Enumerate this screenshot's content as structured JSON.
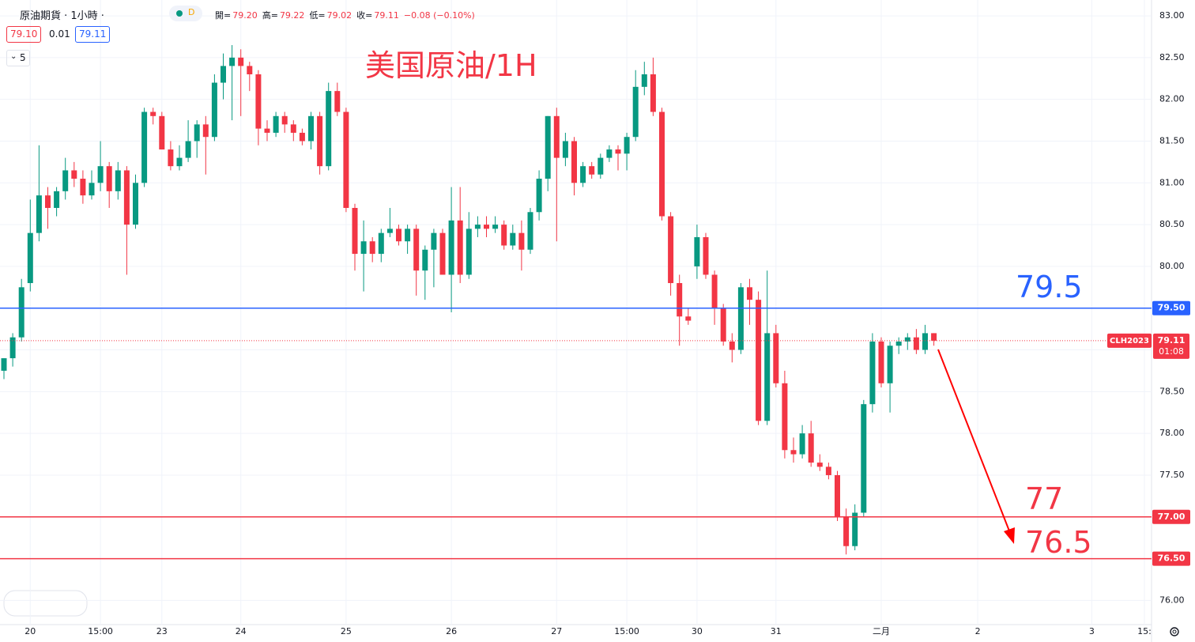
{
  "chart_data": {
    "type": "candlestick",
    "header": {
      "symbol": "原油期貨 · 1小時 ·",
      "badge": "D",
      "items": [
        {
          "label": "開=",
          "value": "79.20"
        },
        {
          "label": "高=",
          "value": "79.22"
        },
        {
          "label": "低=",
          "value": "79.02"
        },
        {
          "label": "收=",
          "value": "79.11"
        }
      ],
      "change": "−0.08 (−0.10%)",
      "bid": "79.10",
      "spread": "0.01",
      "ask": "79.11",
      "indicator": "5"
    },
    "title": "美国原油/1H",
    "annotations": [
      "79.5",
      "77",
      "76.5"
    ],
    "up_color": "#089981",
    "down_color": "#f23645",
    "categories": [
      null,
      null,
      null,
      "20",
      null,
      null,
      null,
      null,
      null,
      null,
      null,
      "15:00",
      null,
      null,
      null,
      null,
      null,
      null,
      "23",
      null,
      null,
      null,
      null,
      null,
      null,
      null,
      null,
      "24",
      null,
      null,
      null,
      null,
      null,
      null,
      null,
      null,
      null,
      null,
      null,
      "25",
      null,
      null,
      null,
      null,
      null,
      null,
      null,
      null,
      null,
      null,
      null,
      "26",
      null,
      null,
      null,
      null,
      null,
      null,
      null,
      null,
      null,
      null,
      null,
      "27",
      null,
      null,
      null,
      null,
      null,
      null,
      null,
      "15:00",
      null,
      null,
      null,
      null,
      null,
      null,
      null,
      "30",
      null,
      null,
      null,
      null,
      null,
      null,
      null,
      null,
      "31",
      null,
      null,
      null,
      null,
      null,
      null,
      null,
      null,
      null,
      null,
      null,
      "二月",
      null,
      null,
      null,
      null,
      null,
      null,
      null,
      null,
      null,
      null,
      "2",
      null,
      null,
      null,
      null,
      null,
      null,
      null,
      null,
      null,
      null,
      null,
      null,
      "3",
      null,
      null,
      null,
      null,
      null,
      "15:"
    ],
    "open": [
      78.75,
      78.9,
      79.15,
      79.8,
      80.4,
      80.85,
      80.7,
      80.9,
      81.15,
      81.05,
      80.85,
      81.0,
      81.2,
      80.9,
      81.15,
      80.5,
      81.0,
      81.85,
      81.8,
      81.4,
      81.2,
      81.3,
      81.5,
      81.7,
      81.55,
      82.2,
      82.4,
      82.5,
      82.4,
      82.3,
      81.65,
      81.6,
      81.8,
      81.7,
      81.6,
      81.5,
      81.8,
      81.2,
      82.1,
      81.85,
      80.7,
      80.15,
      80.3,
      80.15,
      80.4,
      80.45,
      80.3,
      80.45,
      79.95,
      80.2,
      80.4,
      79.9,
      80.55,
      79.9,
      80.45,
      80.5,
      80.45,
      80.5,
      80.25,
      80.4,
      80.2,
      80.65,
      81.05,
      81.8,
      81.3,
      81.5,
      81.0,
      81.2,
      81.1,
      81.3,
      81.4,
      81.35,
      81.55,
      82.15,
      82.3,
      81.85,
      80.6,
      79.8,
      79.4,
      80.0,
      80.35,
      79.9,
      79.5,
      79.1,
      79.0,
      79.75,
      79.6,
      78.15,
      79.2,
      78.6,
      77.8,
      77.75,
      78.0,
      77.65,
      77.6,
      77.5,
      77.0,
      76.65,
      77.05,
      78.35,
      79.1,
      78.6,
      79.05,
      79.1,
      79.15,
      79.0,
      79.2,
      null,
      null,
      null,
      null,
      null,
      null,
      null,
      null,
      null,
      null,
      null,
      null,
      null,
      null,
      null,
      null,
      null,
      null,
      null,
      null,
      null,
      null,
      null,
      null
    ],
    "high": [
      78.9,
      79.2,
      79.85,
      80.8,
      81.45,
      80.95,
      80.95,
      81.3,
      81.25,
      81.15,
      81.15,
      81.5,
      81.25,
      81.25,
      81.2,
      81.1,
      81.9,
      81.9,
      81.85,
      81.5,
      81.45,
      81.75,
      81.75,
      81.8,
      82.3,
      82.55,
      82.65,
      82.6,
      82.45,
      82.35,
      81.75,
      81.85,
      81.85,
      81.75,
      81.65,
      81.85,
      81.85,
      82.2,
      82.2,
      81.9,
      80.75,
      80.55,
      80.35,
      80.45,
      80.7,
      80.5,
      80.5,
      80.5,
      80.25,
      80.45,
      80.45,
      80.95,
      80.95,
      80.65,
      80.6,
      80.6,
      80.6,
      80.55,
      80.5,
      80.55,
      80.7,
      81.15,
      81.8,
      81.9,
      81.6,
      81.55,
      81.25,
      81.25,
      81.35,
      81.45,
      81.45,
      81.6,
      82.35,
      82.45,
      82.5,
      81.9,
      80.65,
      79.9,
      79.5,
      80.5,
      80.4,
      79.95,
      79.55,
      79.2,
      79.8,
      79.85,
      79.7,
      79.95,
      79.3,
      78.75,
      77.95,
      78.1,
      78.15,
      77.75,
      77.65,
      77.55,
      77.1,
      77.15,
      78.4,
      79.2,
      79.15,
      79.1,
      79.15,
      79.2,
      79.25,
      79.3,
      79.2,
      null,
      null,
      null,
      null,
      null,
      null,
      null,
      null,
      null,
      null,
      null,
      null,
      null,
      null,
      null,
      null,
      null,
      null,
      null,
      null,
      null,
      null,
      null,
      null
    ],
    "low": [
      78.65,
      78.8,
      79.1,
      79.7,
      80.3,
      80.45,
      80.6,
      80.8,
      80.95,
      80.75,
      80.8,
      80.9,
      80.7,
      80.8,
      79.9,
      80.45,
      80.95,
      81.7,
      81.4,
      81.15,
      81.15,
      81.25,
      81.3,
      81.1,
      81.5,
      82.0,
      81.75,
      81.8,
      82.1,
      81.45,
      81.5,
      81.55,
      81.6,
      81.5,
      81.45,
      81.4,
      81.1,
      81.15,
      81.8,
      80.65,
      79.95,
      79.7,
      80.05,
      80.05,
      80.35,
      80.25,
      80.15,
      79.65,
      79.6,
      79.75,
      79.9,
      79.45,
      79.8,
      79.85,
      80.35,
      80.35,
      80.4,
      80.2,
      80.2,
      79.95,
      80.15,
      80.55,
      80.9,
      80.3,
      81.2,
      80.85,
      80.95,
      81.05,
      81.05,
      81.25,
      81.15,
      81.15,
      81.5,
      82.05,
      81.8,
      80.55,
      79.65,
      79.05,
      79.3,
      79.85,
      79.85,
      79.3,
      79.05,
      78.85,
      78.95,
      79.3,
      78.1,
      78.1,
      78.55,
      77.7,
      77.65,
      77.7,
      77.6,
      77.55,
      77.45,
      76.95,
      76.55,
      76.6,
      77.0,
      78.25,
      78.55,
      78.25,
      78.95,
      79.0,
      78.95,
      78.95,
      79.05,
      null,
      null,
      null,
      null,
      null,
      null,
      null,
      null,
      null,
      null,
      null,
      null,
      null,
      null,
      null,
      null,
      null,
      null,
      null,
      null,
      null,
      null,
      null,
      null
    ],
    "close": [
      78.9,
      79.15,
      79.75,
      80.4,
      80.85,
      80.7,
      80.9,
      81.15,
      81.05,
      80.85,
      81.0,
      81.2,
      80.9,
      81.15,
      80.5,
      81.0,
      81.85,
      81.8,
      81.4,
      81.2,
      81.3,
      81.5,
      81.7,
      81.55,
      82.2,
      82.4,
      82.5,
      82.4,
      82.3,
      81.65,
      81.6,
      81.8,
      81.7,
      81.6,
      81.5,
      81.8,
      81.2,
      82.1,
      81.85,
      80.7,
      80.15,
      80.3,
      80.15,
      80.4,
      80.45,
      80.3,
      80.45,
      79.95,
      80.2,
      80.4,
      79.9,
      80.55,
      79.9,
      80.45,
      80.5,
      80.45,
      80.5,
      80.25,
      80.4,
      80.2,
      80.65,
      81.05,
      81.8,
      81.3,
      81.5,
      81.0,
      81.2,
      81.1,
      81.3,
      81.4,
      81.35,
      81.55,
      82.15,
      82.3,
      81.85,
      80.6,
      79.8,
      79.4,
      79.35,
      80.35,
      79.9,
      79.5,
      79.1,
      79.0,
      79.75,
      79.6,
      78.15,
      79.2,
      78.6,
      77.8,
      77.75,
      78.0,
      77.65,
      77.6,
      77.5,
      77.0,
      76.65,
      77.05,
      78.35,
      79.1,
      78.6,
      79.05,
      79.1,
      79.15,
      79.0,
      79.2,
      79.11,
      null,
      null,
      null,
      null,
      null,
      null,
      null,
      null,
      null,
      null,
      null,
      null,
      null,
      null,
      null,
      null,
      null,
      null,
      null,
      null,
      null,
      null,
      null,
      null
    ],
    "ylim": [
      75.71,
      83.19
    ],
    "yticks": [
      {
        "value": 76,
        "label": "76.00"
      },
      {
        "value": 76.5,
        "label": "76.50"
      },
      {
        "value": 77,
        "label": "77.00"
      },
      {
        "value": 77.5,
        "label": "77.50"
      },
      {
        "value": 78,
        "label": "78.00"
      },
      {
        "value": 78.5,
        "label": "78.50"
      },
      {
        "value": 79,
        "label": "79.00"
      },
      {
        "value": 79.5,
        "label": "79.50"
      },
      {
        "value": 80,
        "label": "80.00"
      },
      {
        "value": 80.5,
        "label": "80.50"
      },
      {
        "value": 81,
        "label": "81.00"
      },
      {
        "value": 81.5,
        "label": "81.50"
      },
      {
        "value": 82,
        "label": "82.00"
      },
      {
        "value": 82.5,
        "label": "82.50"
      },
      {
        "value": 83,
        "label": "83.00"
      }
    ],
    "grid": true,
    "hlines": [
      {
        "value": 79.5,
        "label": "79.50",
        "color": "#2962ff"
      },
      {
        "value": 77,
        "label": "77.00",
        "color": "#f23645"
      },
      {
        "value": 76.5,
        "label": "76.50",
        "color": "#f23645"
      }
    ],
    "last_price": {
      "symbol": "CLH2023",
      "value": 79.11,
      "label": "79.11",
      "countdown": "01:08",
      "color": "#f23645"
    }
  }
}
